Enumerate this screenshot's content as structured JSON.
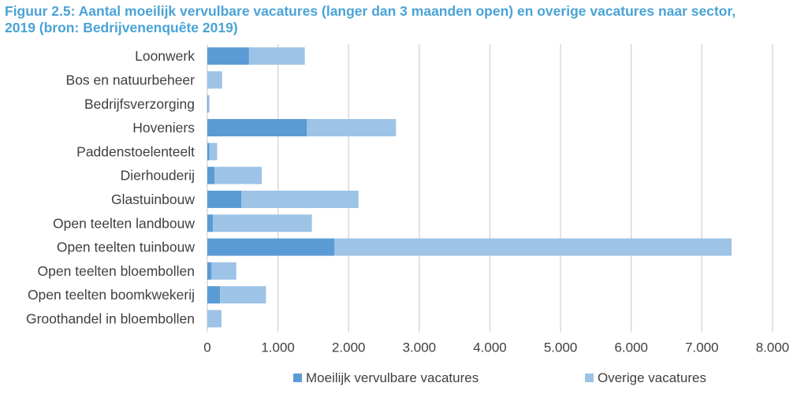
{
  "chart_data": {
    "type": "bar",
    "orientation": "horizontal",
    "stacked": true,
    "title_lines": [
      "Figuur 2.5: Aantal moeilijk vervulbare vacatures (langer dan 3 maanden open) en overige vacatures naar sector,",
      "2019 (bron: Bedrijvenenquête 2019)"
    ],
    "categories": [
      "Loonwerk",
      "Bos en natuurbeheer",
      "Bedrijfsverzorging",
      "Hoveniers",
      "Paddenstoelenteelt",
      "Dierhouderij",
      "Glastuinbouw",
      "Open teelten landbouw",
      "Open teelten tuinbouw",
      "Open teelten bloembollen",
      "Open teelten boomkwekerij",
      "Groothandel in bloembollen"
    ],
    "series": [
      {
        "name": "Moeilijk vervulbare vacatures",
        "color": "#5b9bd5",
        "values": [
          590,
          0,
          10,
          1410,
          30,
          100,
          480,
          80,
          1800,
          60,
          180,
          0
        ]
      },
      {
        "name": "Overige vacatures",
        "color": "#9dc3e6",
        "values": [
          790,
          210,
          20,
          1260,
          110,
          670,
          1660,
          1400,
          5620,
          350,
          650,
          200
        ]
      }
    ],
    "xlim": [
      0,
      8000
    ],
    "x_ticks": [
      0,
      1000,
      2000,
      3000,
      4000,
      5000,
      6000,
      7000,
      8000
    ],
    "x_tick_labels": [
      "0",
      "1.000",
      "2.000",
      "3.000",
      "4.000",
      "5.000",
      "6.000",
      "7.000",
      "8.000"
    ],
    "grid": "vertical",
    "gridline_color": "#d9d9d9",
    "legend_position": "bottom"
  }
}
